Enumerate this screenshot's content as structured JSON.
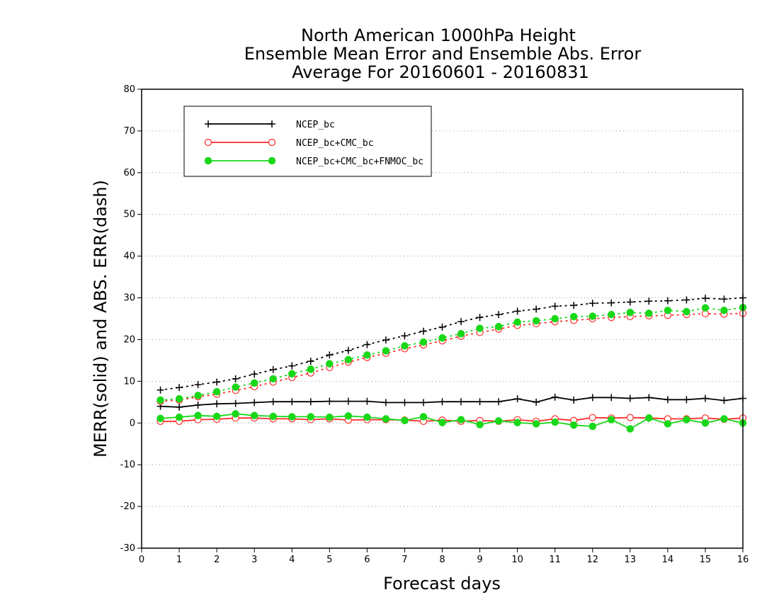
{
  "chart_data": {
    "type": "line",
    "title": [
      "North American 1000hPa Height",
      "Ensemble Mean Error and Ensemble Abs. Error",
      "Average For 20160601 - 20160831"
    ],
    "xlabel": "Forecast days",
    "ylabel": "MERR(solid) and ABS. ERR(dash)",
    "xlim": [
      0,
      16
    ],
    "ylim": [
      -30,
      80
    ],
    "xticks": [
      0,
      1,
      2,
      3,
      4,
      5,
      6,
      7,
      8,
      9,
      10,
      11,
      12,
      13,
      14,
      15,
      16
    ],
    "yticks": [
      -30,
      -20,
      -10,
      0,
      10,
      20,
      30,
      40,
      50,
      60,
      70,
      80
    ],
    "grid": "horizontal dotted",
    "legend_position": "top-left",
    "x": [
      0.5,
      1,
      1.5,
      2,
      2.5,
      3,
      3.5,
      4,
      4.5,
      5,
      5.5,
      6,
      6.5,
      7,
      7.5,
      8,
      8.5,
      9,
      9.5,
      10,
      10.5,
      11,
      11.5,
      12,
      12.5,
      13,
      13.5,
      14,
      14.5,
      15,
      15.5,
      16
    ],
    "series": [
      {
        "name": "NCEP_bc",
        "color": "#000000",
        "marker": "plus",
        "merr": [
          4.0,
          3.8,
          4.3,
          4.6,
          4.7,
          4.9,
          5.1,
          5.1,
          5.1,
          5.2,
          5.2,
          5.2,
          4.9,
          4.9,
          4.9,
          5.1,
          5.1,
          5.1,
          5.1,
          5.8,
          5.0,
          6.2,
          5.5,
          6.1,
          6.1,
          5.9,
          6.1,
          5.6,
          5.6,
          5.9,
          5.4,
          5.9
        ],
        "abs_err": [
          7.9,
          8.5,
          9.2,
          9.8,
          10.6,
          11.7,
          12.8,
          13.7,
          14.8,
          16.3,
          17.4,
          18.8,
          19.9,
          20.9,
          22.0,
          23.0,
          24.3,
          25.3,
          26.0,
          26.8,
          27.3,
          28.0,
          28.2,
          28.7,
          28.8,
          29.0,
          29.2,
          29.3,
          29.5,
          29.9,
          29.7,
          30.0
        ]
      },
      {
        "name": "NCEP_bc+CMC_bc",
        "color": "#ff2a2a",
        "marker": "open-circle",
        "merr": [
          0.4,
          0.4,
          0.8,
          0.9,
          1.2,
          1.2,
          1.0,
          1.0,
          0.8,
          1.0,
          0.7,
          0.8,
          0.8,
          0.7,
          0.4,
          0.7,
          0.4,
          0.6,
          0.4,
          0.8,
          0.4,
          1.0,
          0.6,
          1.3,
          1.2,
          1.3,
          1.2,
          1.0,
          1.0,
          1.2,
          0.9,
          1.2
        ],
        "abs_err": [
          5.2,
          5.5,
          6.3,
          6.9,
          7.8,
          8.7,
          9.8,
          10.9,
          12.0,
          13.3,
          14.6,
          15.7,
          16.7,
          17.8,
          18.7,
          19.7,
          20.8,
          21.7,
          22.5,
          23.4,
          23.8,
          24.3,
          24.6,
          25.0,
          25.3,
          25.5,
          25.7,
          25.8,
          26.0,
          26.2,
          26.1,
          26.3
        ]
      },
      {
        "name": "NCEP_bc+CMC_bc+FNMOC_bc",
        "color": "#18d818",
        "marker": "filled-circle",
        "merr": [
          1.1,
          1.4,
          1.8,
          1.6,
          2.2,
          1.8,
          1.6,
          1.5,
          1.5,
          1.4,
          1.7,
          1.4,
          1.0,
          0.6,
          1.5,
          0.1,
          0.8,
          -0.4,
          0.5,
          0.1,
          -0.2,
          0.2,
          -0.5,
          -0.8,
          0.8,
          -1.4,
          1.2,
          -0.2,
          0.8,
          0.0,
          1.0,
          0.0
        ],
        "abs_err": [
          5.5,
          5.8,
          6.6,
          7.5,
          8.6,
          9.6,
          10.6,
          11.8,
          12.9,
          14.2,
          15.2,
          16.3,
          17.3,
          18.5,
          19.4,
          20.4,
          21.4,
          22.7,
          23.1,
          24.2,
          24.5,
          25.0,
          25.5,
          25.6,
          26.0,
          26.5,
          26.3,
          27.0,
          26.7,
          27.6,
          27.0,
          27.7
        ]
      }
    ]
  }
}
